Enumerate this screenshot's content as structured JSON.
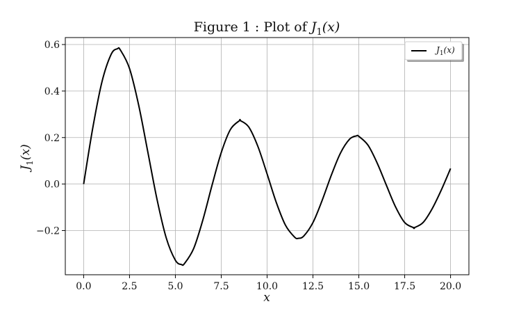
{
  "chart_data": {
    "type": "line",
    "title": "Figure 1 : Plot of J1(x)",
    "title_prefix": "Figure 1 : Plot of ",
    "title_math": "J",
    "title_math_sub": "1",
    "title_math_suffix": "(x)",
    "xlabel": "x",
    "ylabel": "J1(x)",
    "ylabel_main": "J",
    "ylabel_sub": "1",
    "ylabel_suffix": "(x)",
    "xlim": [
      -1.0,
      21.0
    ],
    "ylim": [
      -0.39,
      0.63
    ],
    "grid": true,
    "legend_position": "top-right",
    "x_ticks": [
      0.0,
      2.5,
      5.0,
      7.5,
      10.0,
      12.5,
      15.0,
      17.5,
      20.0
    ],
    "x_tick_labels": [
      "0.0",
      "2.5",
      "5.0",
      "7.5",
      "10.0",
      "12.5",
      "15.0",
      "17.5",
      "20.0"
    ],
    "y_ticks": [
      -0.2,
      0.0,
      0.2,
      0.4,
      0.6
    ],
    "y_tick_labels": [
      "−0.2",
      "0.0",
      "0.2",
      "0.4",
      "0.6"
    ],
    "series": [
      {
        "name": "J1(x)",
        "legend_main": "J",
        "legend_sub": "1",
        "legend_suffix": "(x)",
        "color": "#000000",
        "x": [
          0.0,
          0.5,
          1.0,
          1.5,
          2.0,
          2.5,
          3.0,
          3.5,
          4.0,
          4.5,
          5.0,
          5.5,
          6.0,
          6.5,
          7.0,
          7.5,
          8.0,
          8.5,
          9.0,
          9.5,
          10.0,
          10.5,
          11.0,
          11.5,
          12.0,
          12.5,
          13.0,
          13.5,
          14.0,
          14.5,
          15.0,
          15.5,
          16.0,
          16.5,
          17.0,
          17.5,
          18.0,
          18.5,
          19.0,
          19.5,
          20.0
        ],
        "y": [
          0.0,
          0.2423,
          0.4401,
          0.5579,
          0.5767,
          0.4971,
          0.3391,
          0.1374,
          -0.066,
          -0.2311,
          -0.3276,
          -0.3414,
          -0.2767,
          -0.1538,
          -0.0047,
          0.1352,
          0.2346,
          0.2731,
          0.2453,
          0.1613,
          0.0435,
          -0.0789,
          -0.1768,
          -0.2284,
          -0.2234,
          -0.1655,
          -0.0703,
          0.038,
          0.1334,
          0.1934,
          0.2051,
          0.1672,
          0.0904,
          -0.0047,
          -0.0977,
          -0.1654,
          -0.188,
          -0.1655,
          -0.1057,
          -0.0248,
          0.0668
        ]
      }
    ],
    "peak_annotations": [
      {
        "x": 1.841,
        "y": 0.5819
      },
      {
        "x": 5.331,
        "y": -0.3462
      },
      {
        "x": 8.536,
        "y": 0.2733
      },
      {
        "x": 11.706,
        "y": -0.2333
      },
      {
        "x": 14.864,
        "y": 0.207
      },
      {
        "x": 18.016,
        "y": -0.188
      }
    ]
  }
}
